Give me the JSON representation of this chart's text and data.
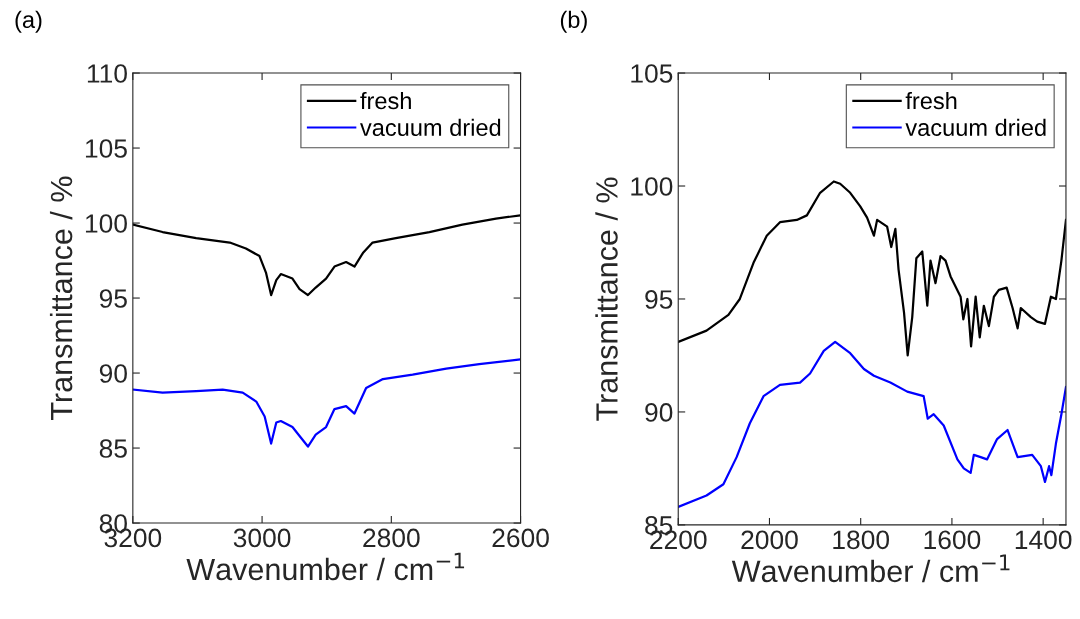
{
  "chart_data": [
    {
      "type": "line",
      "title": "(a)",
      "xlabel": "Wavenumber / cm$^{−1}$",
      "ylabel": "Transmittance / %",
      "xlim": [
        3200,
        2600
      ],
      "xticks": [
        3200,
        3000,
        2800,
        2600
      ],
      "ylim": [
        80,
        110
      ],
      "yticks": [
        80,
        85,
        90,
        95,
        100,
        105,
        110
      ],
      "legend": "top right",
      "grid": false,
      "series": [
        {
          "name": "fresh",
          "color": "#000000",
          "x": [
            3200,
            3154,
            3102,
            3050,
            3025,
            3004,
            2994,
            2986,
            2978,
            2971,
            2953,
            2942,
            2929,
            2917,
            2901,
            2888,
            2870,
            2857,
            2844,
            2829,
            2793,
            2741,
            2690,
            2638,
            2602
          ],
          "values": [
            99.9,
            99.4,
            99.0,
            98.7,
            98.3,
            97.8,
            96.7,
            95.2,
            96.2,
            96.6,
            96.3,
            95.6,
            95.2,
            95.7,
            96.3,
            97.1,
            97.4,
            97.1,
            98.0,
            98.7,
            99.0,
            99.4,
            99.9,
            100.3,
            100.5
          ]
        },
        {
          "name": "vacuum dried",
          "color": "#0000ff",
          "x": [
            3200,
            3154,
            3102,
            3061,
            3030,
            3009,
            2996,
            2986,
            2978,
            2971,
            2953,
            2942,
            2929,
            2917,
            2901,
            2888,
            2870,
            2857,
            2839,
            2813,
            2767,
            2715,
            2664,
            2602
          ],
          "values": [
            88.9,
            88.7,
            88.8,
            88.9,
            88.7,
            88.1,
            87.1,
            85.3,
            86.7,
            86.8,
            86.4,
            85.8,
            85.1,
            85.9,
            86.4,
            87.6,
            87.8,
            87.3,
            89.0,
            89.6,
            89.9,
            90.3,
            90.6,
            90.9
          ]
        }
      ]
    },
    {
      "type": "line",
      "title": "(b)",
      "xlabel": "Wavenumber / cm$^{−1}$",
      "ylabel": "Transmittance / %",
      "xlim": [
        2200,
        1350
      ],
      "xticks": [
        2200,
        2000,
        1800,
        1600,
        1400
      ],
      "ylim": [
        85,
        105
      ],
      "yticks": [
        85,
        90,
        95,
        100,
        105
      ],
      "legend": "top right",
      "grid": false,
      "series": [
        {
          "name": "fresh",
          "color": "#000000",
          "x": [
            2200,
            2138,
            2090,
            2065,
            2035,
            2006,
            1977,
            1940,
            1918,
            1889,
            1859,
            1845,
            1823,
            1801,
            1786,
            1771,
            1764,
            1742,
            1733,
            1724,
            1717,
            1705,
            1697,
            1687,
            1678,
            1665,
            1654,
            1647,
            1636,
            1625,
            1614,
            1603,
            1581,
            1575,
            1566,
            1558,
            1548,
            1539,
            1530,
            1519,
            1508,
            1497,
            1480,
            1467,
            1456,
            1449,
            1427,
            1413,
            1396,
            1383,
            1372,
            1360,
            1350
          ],
          "values": [
            93.1,
            93.6,
            94.3,
            95.0,
            96.6,
            97.8,
            98.4,
            98.5,
            98.7,
            99.7,
            100.2,
            100.1,
            99.7,
            99.1,
            98.6,
            97.8,
            98.5,
            98.2,
            97.3,
            98.1,
            96.3,
            94.4,
            92.5,
            94.2,
            96.8,
            97.1,
            94.7,
            96.7,
            95.7,
            96.9,
            96.7,
            96.0,
            95.1,
            94.1,
            95.0,
            92.9,
            95.1,
            93.3,
            94.7,
            93.8,
            95.1,
            95.4,
            95.5,
            94.6,
            93.7,
            94.6,
            94.2,
            94.0,
            93.9,
            95.1,
            95.0,
            96.7,
            98.5
          ]
        },
        {
          "name": "vacuum dried",
          "color": "#0000ff",
          "x": [
            2200,
            2138,
            2101,
            2072,
            2043,
            2013,
            1977,
            1933,
            1911,
            1881,
            1856,
            1823,
            1793,
            1771,
            1735,
            1698,
            1662,
            1653,
            1640,
            1618,
            1588,
            1574,
            1559,
            1552,
            1537,
            1523,
            1501,
            1478,
            1456,
            1424,
            1405,
            1396,
            1387,
            1382,
            1372,
            1360,
            1350
          ],
          "values": [
            85.8,
            86.3,
            86.8,
            88.0,
            89.5,
            90.7,
            91.2,
            91.3,
            91.7,
            92.7,
            93.1,
            92.6,
            91.9,
            91.6,
            91.3,
            90.9,
            90.7,
            89.7,
            89.9,
            89.4,
            87.9,
            87.5,
            87.3,
            88.1,
            88.0,
            87.9,
            88.8,
            89.2,
            88.0,
            88.1,
            87.6,
            86.9,
            87.6,
            87.2,
            88.6,
            89.9,
            91.1
          ]
        }
      ]
    }
  ]
}
